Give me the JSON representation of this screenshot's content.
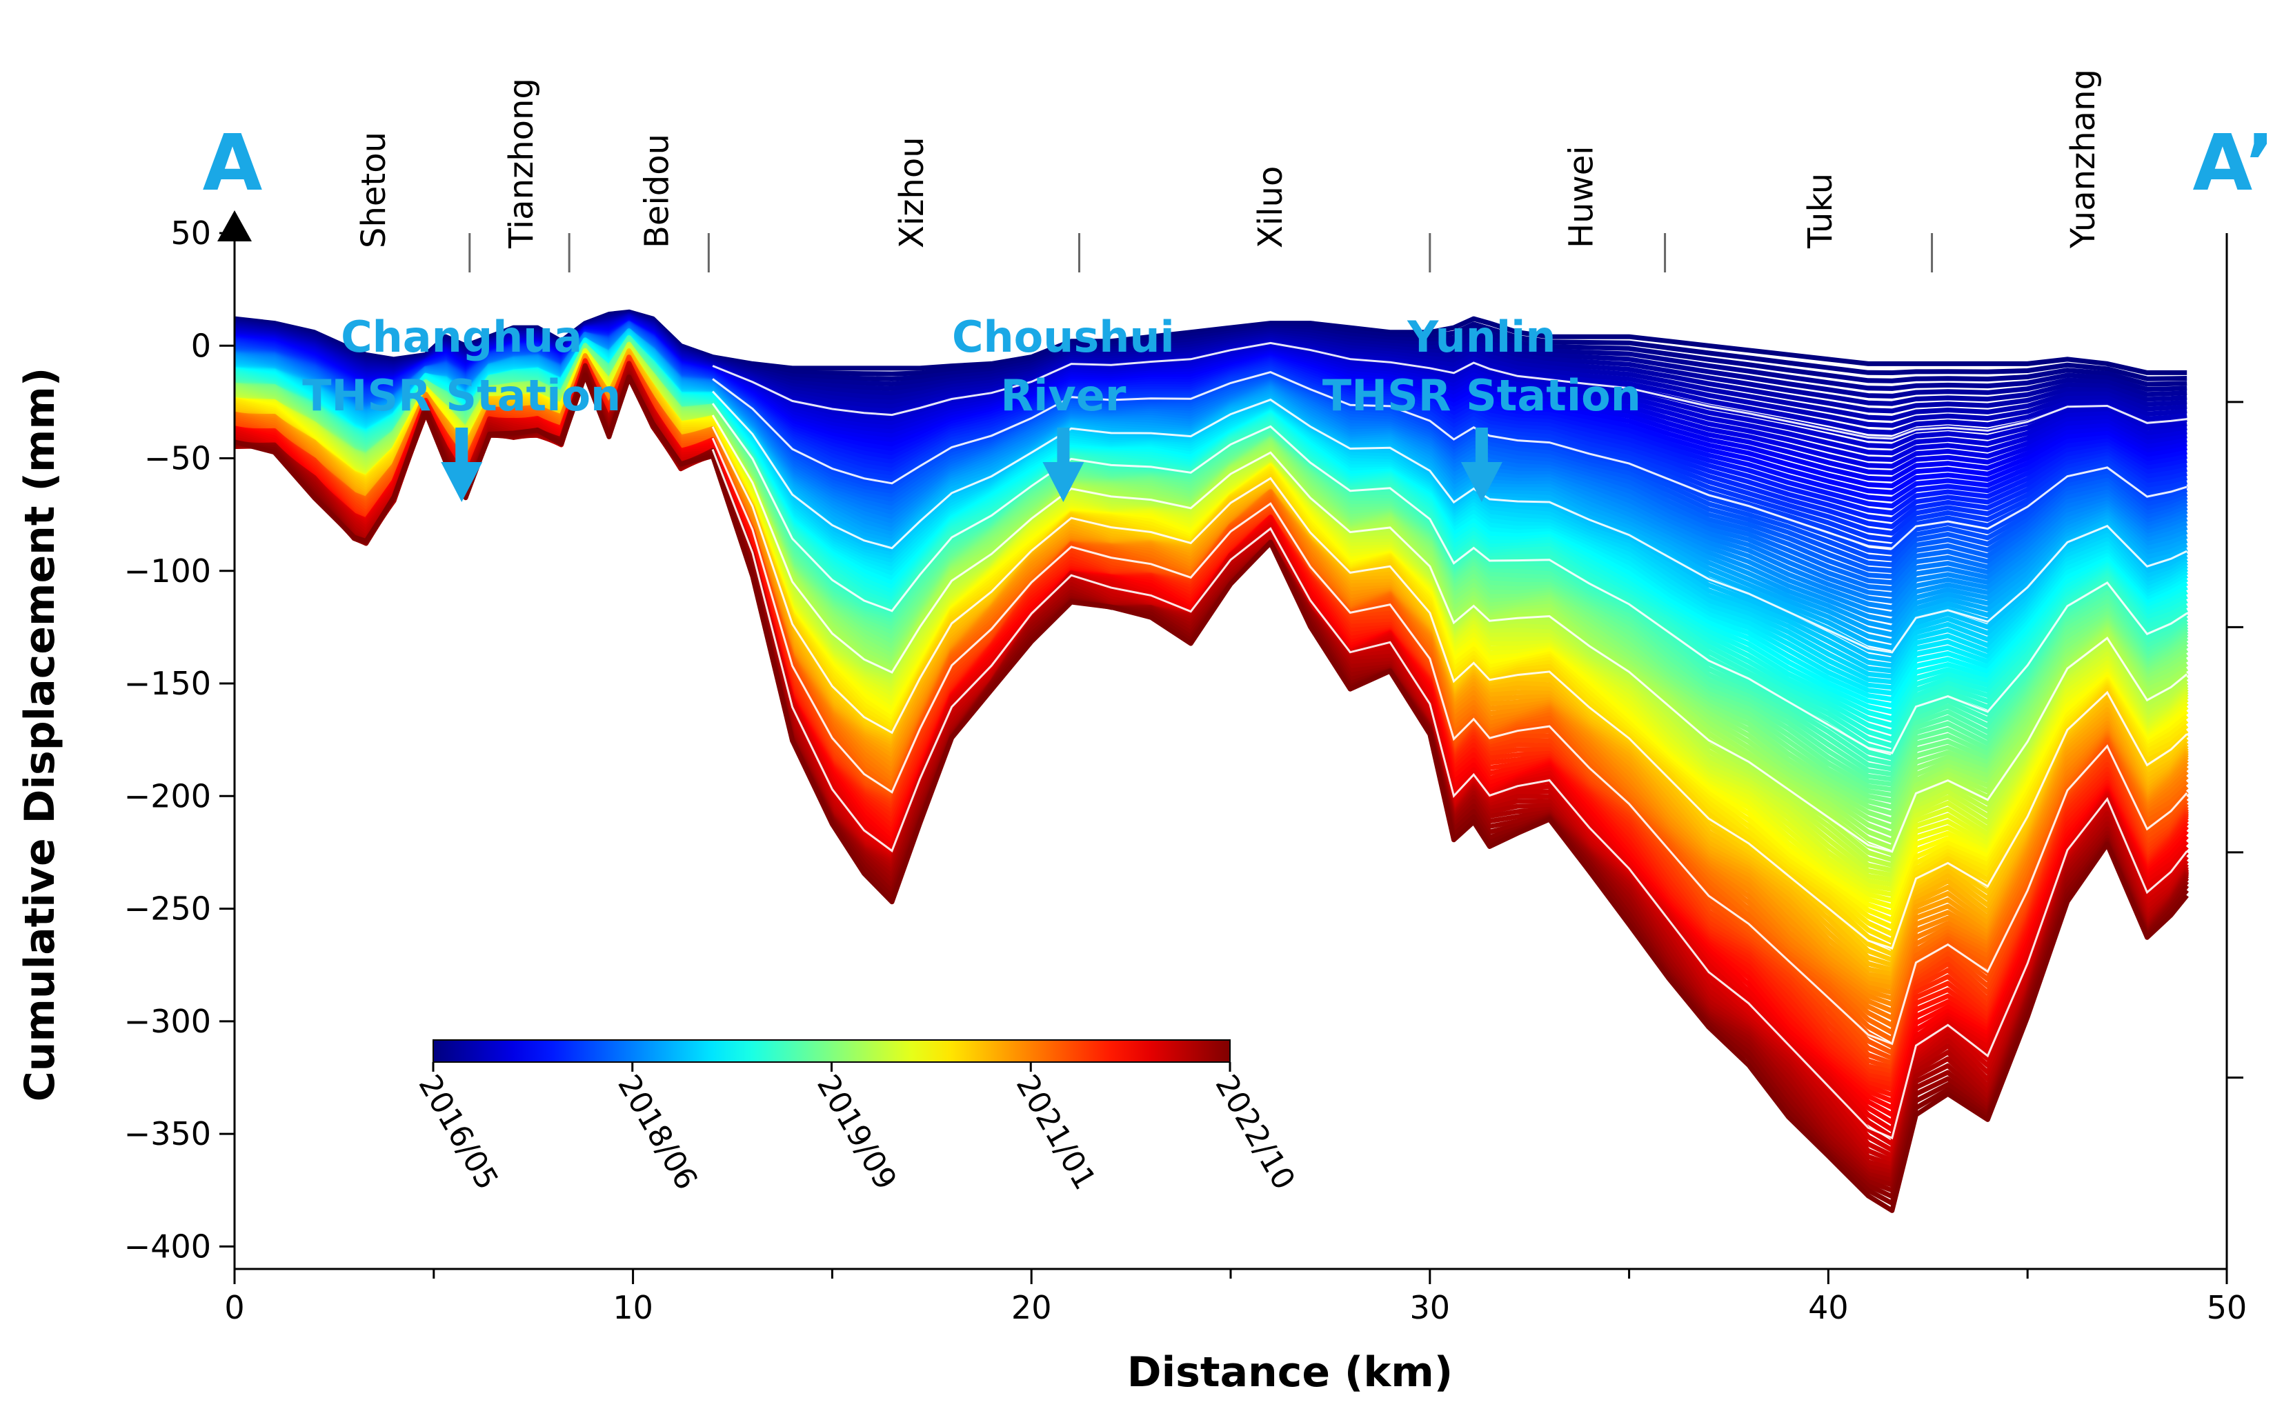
{
  "chart_data": {
    "type": "line",
    "xlabel": "Distance (km)",
    "ylabel": "Cumulative Displacement (mm)",
    "xlim": [
      0,
      50
    ],
    "ylim": [
      -410,
      50
    ],
    "x_ticks": [
      0,
      10,
      20,
      30,
      40,
      50
    ],
    "y_ticks": [
      50,
      0,
      -50,
      -100,
      -150,
      -200,
      -250,
      -300,
      -350,
      -400
    ],
    "profile_start": "A",
    "profile_end": "A’",
    "towns": [
      {
        "name": "Shetou",
        "x": 3.5
      },
      {
        "name": "Tianzhong",
        "x": 7.2
      },
      {
        "name": "Beidou",
        "x": 10.6
      },
      {
        "name": "Xizhou",
        "x": 17.0
      },
      {
        "name": "Xiluo",
        "x": 26.0
      },
      {
        "name": "Huwei",
        "x": 33.8
      },
      {
        "name": "Tuku",
        "x": 39.8
      },
      {
        "name": "Yuanzhang",
        "x": 46.4
      }
    ],
    "town_boundaries_km": [
      5.9,
      8.4,
      11.9,
      21.2,
      30.0,
      35.9,
      42.6
    ],
    "annotations": [
      {
        "lines": [
          "Changhua",
          "THSR Station"
        ],
        "x": 5.7
      },
      {
        "lines": [
          "Choushui",
          "River"
        ],
        "x": 20.8
      },
      {
        "lines": [
          "Yunlin",
          "THSR Station"
        ],
        "x": 31.3
      }
    ],
    "colorbar": {
      "label_dates": [
        "2016/05",
        "2018/06",
        "2019/09",
        "2021/01",
        "2022/10"
      ],
      "colormap": "jet"
    },
    "profile_distance_km": [
      0,
      1,
      2,
      3,
      3.3,
      4,
      4.8,
      5.3,
      5.8,
      6.4,
      7,
      7.6,
      8.2,
      8.8,
      9.4,
      9.9,
      10.5,
      11.2,
      12,
      13,
      14,
      15,
      15.8,
      16.5,
      17.2,
      18,
      19,
      20,
      21,
      22,
      23,
      24,
      25,
      26,
      27,
      28,
      29,
      30,
      30.6,
      31.1,
      31.5,
      32.2,
      33,
      34,
      35,
      36,
      37,
      38,
      39,
      40,
      41,
      41.6,
      42.2,
      43,
      44,
      45,
      46,
      47,
      48,
      48.6,
      49
    ],
    "final_displacement_mm": [
      -45,
      -48,
      -65,
      -85,
      -88,
      -70,
      -30,
      -50,
      -65,
      -38,
      -40,
      -40,
      -45,
      -12,
      -38,
      -12,
      -35,
      -55,
      -50,
      -100,
      -175,
      -215,
      -235,
      -245,
      -210,
      -175,
      -155,
      -130,
      -112,
      -118,
      -122,
      -130,
      -105,
      -90,
      -125,
      -150,
      -145,
      -175,
      -220,
      -210,
      -220,
      -215,
      -212,
      -235,
      -255,
      -280,
      -305,
      -320,
      -340,
      -360,
      -380,
      -385,
      -340,
      -330,
      -345,
      -300,
      -245,
      -220,
      -265,
      -255,
      -245
    ],
    "first_displacement_mm": [
      12,
      10,
      6,
      -2,
      -4,
      -6,
      -4,
      4,
      0,
      4,
      8,
      8,
      2,
      10,
      14,
      15,
      12,
      0,
      -5,
      -8,
      -10,
      -10,
      -10,
      -10,
      -10,
      -9,
      -8,
      -5,
      2,
      2,
      4,
      6,
      8,
      10,
      10,
      8,
      6,
      6,
      8,
      12,
      10,
      6,
      4,
      4,
      4,
      2,
      0,
      -2,
      -4,
      -6,
      -8,
      -8,
      -8,
      -8,
      -8,
      -8,
      -6,
      -8,
      -12,
      -12,
      -12
    ],
    "white_gap_dates": [
      "2016/10",
      "2017/05",
      "2018/01",
      "2018/11",
      "2019/07",
      "2020/06",
      "2021/04",
      "2022/01"
    ]
  }
}
